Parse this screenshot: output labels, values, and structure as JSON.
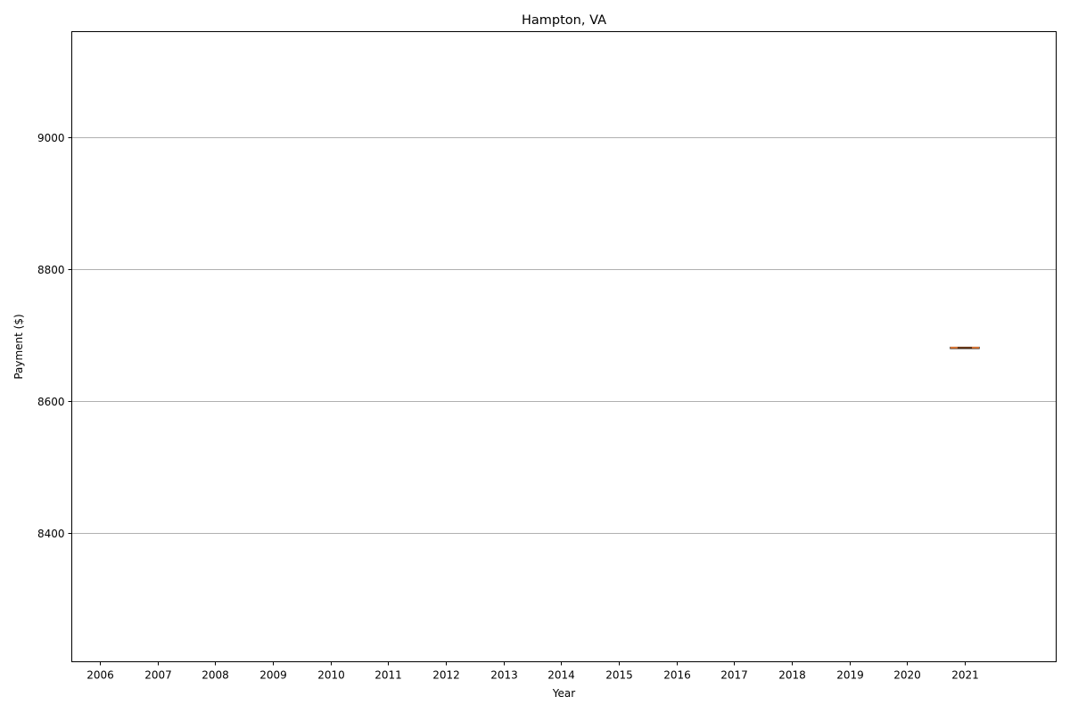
{
  "chart_data": {
    "type": "box",
    "title": "Hampton, VA",
    "xlabel": "Year",
    "ylabel": "Payment ($)",
    "categories": [
      "2006",
      "2007",
      "2008",
      "2009",
      "2010",
      "2011",
      "2012",
      "2013",
      "2014",
      "2015",
      "2016",
      "2017",
      "2018",
      "2019",
      "2020",
      "2021"
    ],
    "y_ticks": [
      8400,
      8600,
      8800,
      9000
    ],
    "ylim": [
      8205,
      9160
    ],
    "grid": "y",
    "series": [
      {
        "category": "2021",
        "values": [
          8681,
          8681,
          8681,
          8681,
          8681
        ],
        "median": 8681
      }
    ],
    "colors": {
      "box": "#000000",
      "median": "#e07b39",
      "grid": "#b0b0b0"
    }
  }
}
